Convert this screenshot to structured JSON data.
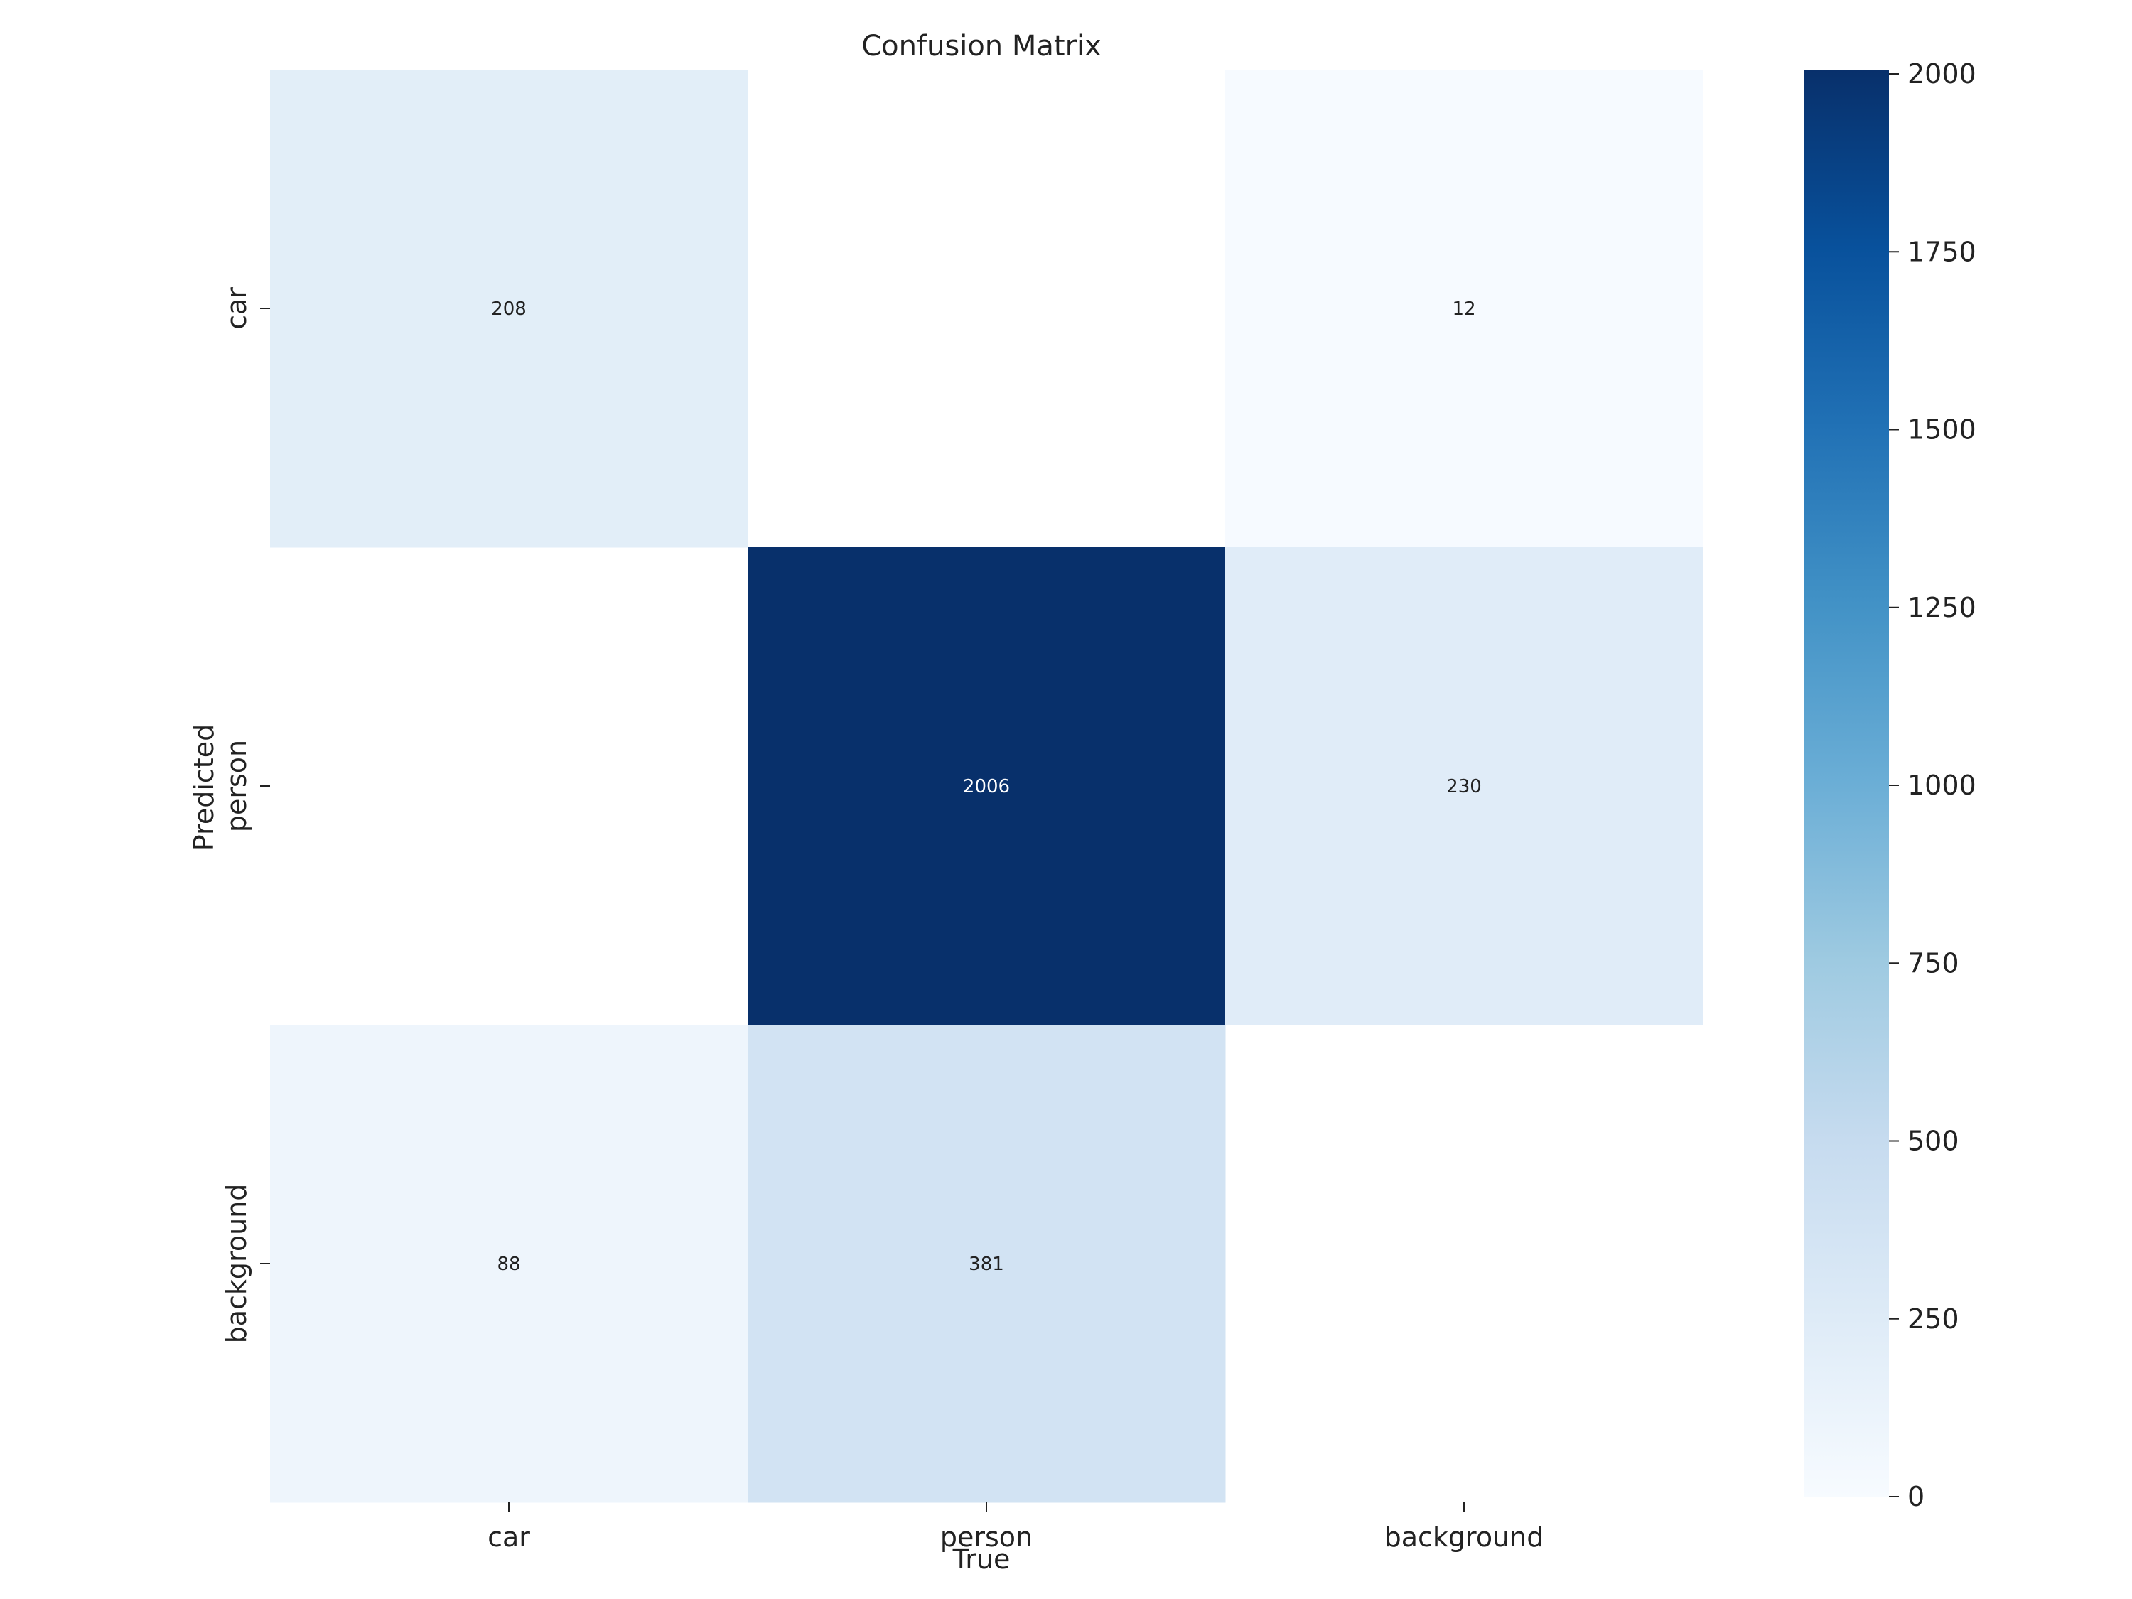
{
  "chart_data": {
    "type": "heatmap",
    "title": "Confusion Matrix",
    "xlabel": "True",
    "ylabel": "Predicted",
    "x_categories": [
      "car",
      "person",
      "background"
    ],
    "y_categories": [
      "car",
      "person",
      "background"
    ],
    "values": [
      [
        208,
        null,
        12
      ],
      [
        null,
        2006,
        230
      ],
      [
        88,
        381,
        null
      ]
    ],
    "colorbar": {
      "min": 0,
      "max": 2006,
      "ticks": [
        0,
        250,
        500,
        750,
        1000,
        1250,
        1500,
        1750,
        2000
      ],
      "colormap": "Blues",
      "colors": [
        "#f7fbff",
        "#deebf7",
        "#c6dbef",
        "#9ecae1",
        "#6baed6",
        "#4292c6",
        "#2171b5",
        "#08519c",
        "#08306b"
      ]
    },
    "grid": false,
    "legend": "colorbar-right"
  }
}
